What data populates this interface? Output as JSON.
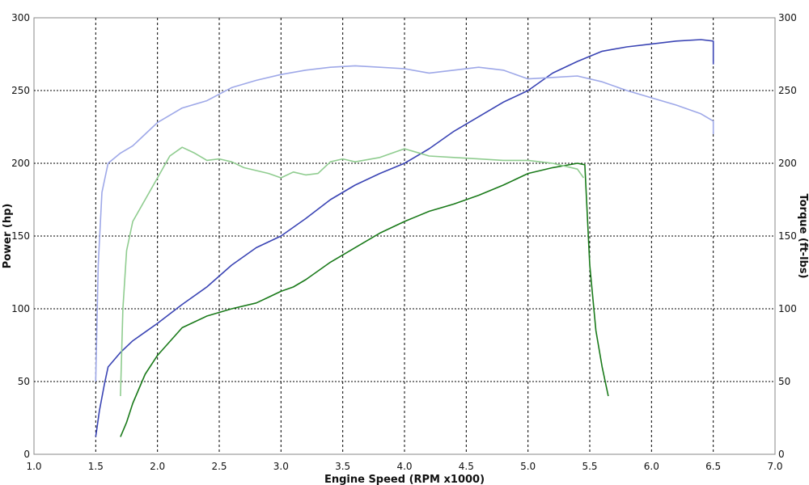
{
  "chart_data": {
    "type": "line",
    "title": "",
    "xlabel": "Engine Speed (RPM x1000)",
    "ylabel": "Power (hp)",
    "y2label": "Torque (ft-lbs)",
    "xlim": [
      1.0,
      7.0
    ],
    "ylim": [
      0,
      300
    ],
    "y2lim": [
      0,
      300
    ],
    "xticks": [
      "1.0",
      "1.5",
      "2.0",
      "2.5",
      "3.0",
      "3.5",
      "4.0",
      "4.5",
      "5.0",
      "5.5",
      "6.0",
      "6.5",
      "7.0"
    ],
    "yticks": [
      "0",
      "50",
      "100",
      "150",
      "200",
      "250",
      "300"
    ],
    "y2ticks": [
      "0",
      "50",
      "100",
      "150",
      "200",
      "250",
      "300"
    ],
    "grid": true,
    "series": [
      {
        "color": "#3a44b4",
        "axis": "left",
        "x": [
          1.5,
          1.53,
          1.57,
          1.6,
          1.7,
          1.8,
          1.9,
          2.0,
          2.2,
          2.4,
          2.6,
          2.8,
          3.0,
          3.2,
          3.4,
          3.6,
          3.8,
          4.0,
          4.2,
          4.4,
          4.6,
          4.8,
          5.0,
          5.2,
          5.4,
          5.6,
          5.8,
          6.0,
          6.2,
          6.4,
          6.5,
          6.5
        ],
        "y": [
          12,
          30,
          48,
          60,
          70,
          78,
          84,
          90,
          103,
          115,
          130,
          142,
          150,
          162,
          175,
          185,
          193,
          200,
          210,
          222,
          232,
          242,
          250,
          262,
          270,
          277,
          280,
          282,
          284,
          285,
          284,
          268
        ]
      },
      {
        "color": "#9ea8e8",
        "axis": "right",
        "x": [
          1.5,
          1.52,
          1.55,
          1.6,
          1.7,
          1.8,
          1.9,
          2.0,
          2.2,
          2.4,
          2.6,
          2.8,
          3.0,
          3.2,
          3.4,
          3.6,
          3.8,
          4.0,
          4.2,
          4.4,
          4.6,
          4.8,
          5.0,
          5.2,
          5.4,
          5.6,
          5.8,
          6.0,
          6.2,
          6.4,
          6.5,
          6.5
        ],
        "y": [
          50,
          130,
          180,
          200,
          207,
          212,
          220,
          228,
          238,
          243,
          252,
          257,
          261,
          264,
          266,
          267,
          266,
          265,
          262,
          264,
          266,
          264,
          258,
          259,
          260,
          256,
          250,
          245,
          240,
          234,
          229,
          220
        ]
      },
      {
        "color": "#1a7a1a",
        "axis": "left",
        "x": [
          1.7,
          1.75,
          1.8,
          1.9,
          2.0,
          2.2,
          2.4,
          2.6,
          2.8,
          2.9,
          3.0,
          3.1,
          3.2,
          3.4,
          3.6,
          3.8,
          4.0,
          4.2,
          4.4,
          4.6,
          4.8,
          5.0,
          5.2,
          5.4,
          5.46,
          5.5,
          5.55,
          5.6,
          5.65
        ],
        "y": [
          12,
          22,
          35,
          55,
          68,
          87,
          95,
          100,
          104,
          108,
          112,
          115,
          120,
          132,
          142,
          152,
          160,
          167,
          172,
          178,
          185,
          193,
          197,
          200,
          199,
          130,
          85,
          60,
          40
        ]
      },
      {
        "color": "#8fcc8f",
        "axis": "right",
        "x": [
          1.7,
          1.72,
          1.75,
          1.8,
          1.9,
          2.0,
          2.1,
          2.2,
          2.3,
          2.4,
          2.5,
          2.6,
          2.7,
          2.8,
          2.9,
          3.0,
          3.1,
          3.2,
          3.3,
          3.4,
          3.5,
          3.6,
          3.8,
          4.0,
          4.2,
          4.4,
          4.6,
          4.8,
          5.0,
          5.2,
          5.4,
          5.45
        ],
        "y": [
          40,
          100,
          140,
          160,
          175,
          190,
          205,
          211,
          207,
          202,
          203,
          201,
          197,
          195,
          193,
          190,
          194,
          192,
          193,
          201,
          203,
          201,
          204,
          210,
          205,
          204,
          203,
          202,
          202,
          200,
          196,
          190
        ]
      }
    ]
  }
}
